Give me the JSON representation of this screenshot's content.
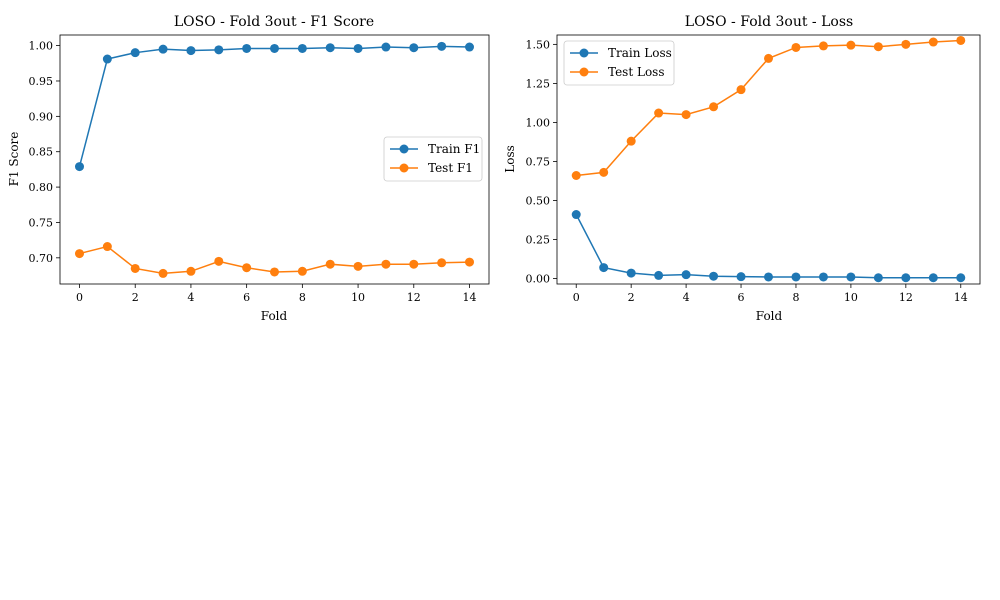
{
  "chart_data": [
    {
      "type": "line",
      "title": "LOSO - Fold 3out - F1 Score",
      "xlabel": "Fold",
      "ylabel": "F1 Score",
      "x": [
        0,
        1,
        2,
        3,
        4,
        5,
        6,
        7,
        8,
        9,
        10,
        11,
        12,
        13,
        14
      ],
      "xticks": [
        0,
        2,
        4,
        6,
        8,
        10,
        12,
        14
      ],
      "yticks": [
        0.7,
        0.75,
        0.8,
        0.85,
        0.9,
        0.95,
        1.0
      ],
      "ytick_labels": [
        "0.70",
        "0.75",
        "0.80",
        "0.85",
        "0.90",
        "0.95",
        "1.00"
      ],
      "xlim": [
        -0.7,
        14.7
      ],
      "ylim": [
        0.663,
        1.015
      ],
      "legend_position": "center-right",
      "grid": false,
      "series": [
        {
          "name": "Train F1",
          "color": "#1f77b4",
          "values": [
            0.829,
            0.981,
            0.99,
            0.995,
            0.993,
            0.994,
            0.996,
            0.996,
            0.996,
            0.997,
            0.996,
            0.998,
            0.997,
            0.999,
            0.998
          ]
        },
        {
          "name": "Test F1",
          "color": "#ff7f0e",
          "values": [
            0.706,
            0.716,
            0.685,
            0.678,
            0.681,
            0.695,
            0.686,
            0.68,
            0.681,
            0.691,
            0.688,
            0.691,
            0.691,
            0.693,
            0.694
          ]
        }
      ]
    },
    {
      "type": "line",
      "title": "LOSO - Fold 3out - Loss",
      "xlabel": "Fold",
      "ylabel": "Loss",
      "x": [
        0,
        1,
        2,
        3,
        4,
        5,
        6,
        7,
        8,
        9,
        10,
        11,
        12,
        13,
        14
      ],
      "xticks": [
        0,
        2,
        4,
        6,
        8,
        10,
        12,
        14
      ],
      "yticks": [
        0.0,
        0.25,
        0.5,
        0.75,
        1.0,
        1.25,
        1.5
      ],
      "ytick_labels": [
        "0.00",
        "0.25",
        "0.50",
        "0.75",
        "1.00",
        "1.25",
        "1.50"
      ],
      "xlim": [
        -0.7,
        14.7
      ],
      "ylim": [
        -0.035,
        1.56
      ],
      "legend_position": "upper-left",
      "grid": false,
      "series": [
        {
          "name": "Train Loss",
          "color": "#1f77b4",
          "values": [
            0.41,
            0.07,
            0.035,
            0.02,
            0.025,
            0.015,
            0.012,
            0.01,
            0.01,
            0.01,
            0.01,
            0.005,
            0.005,
            0.005,
            0.005
          ]
        },
        {
          "name": "Test Loss",
          "color": "#ff7f0e",
          "values": [
            0.66,
            0.68,
            0.88,
            1.06,
            1.05,
            1.1,
            1.21,
            1.41,
            1.48,
            1.49,
            1.495,
            1.485,
            1.5,
            1.515,
            1.525
          ]
        }
      ]
    }
  ]
}
